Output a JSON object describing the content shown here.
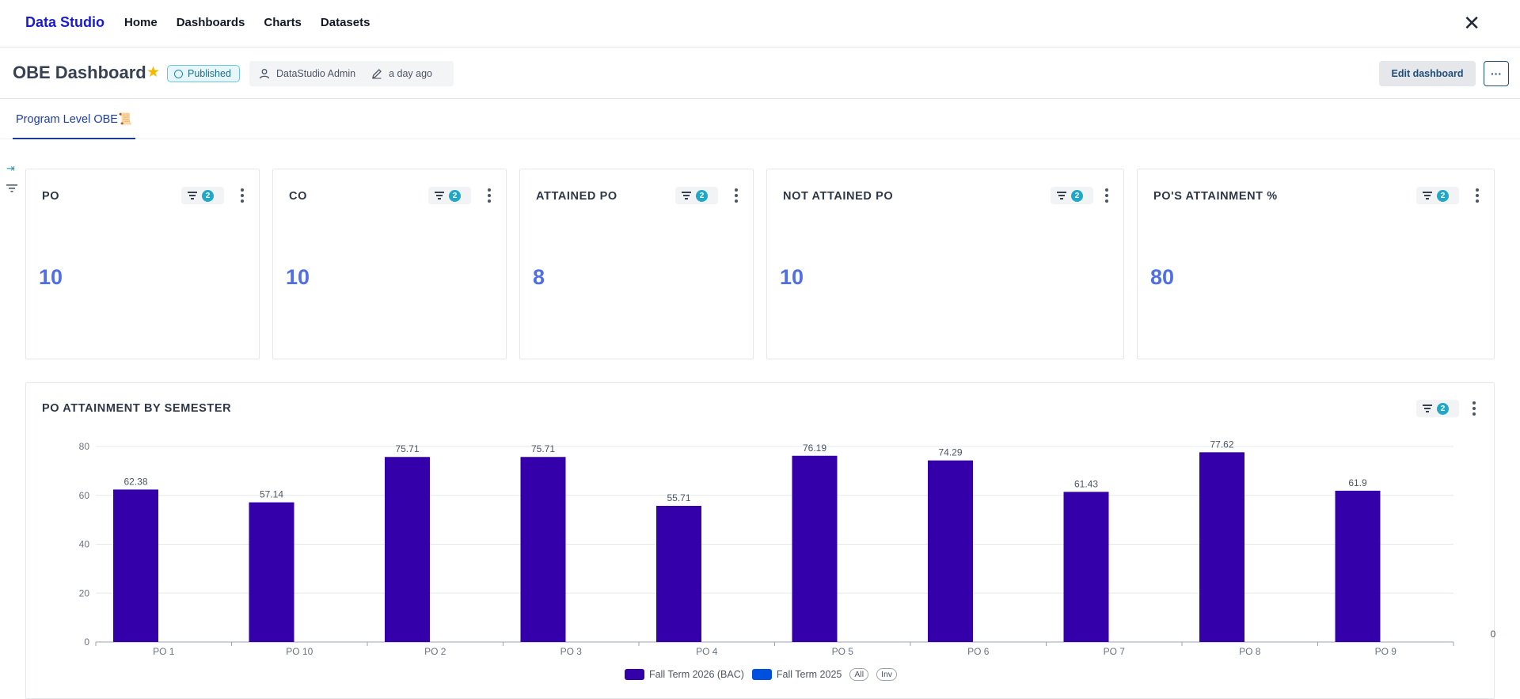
{
  "app": {
    "brand": "Data Studio",
    "close_icon": "close-icon"
  },
  "nav": {
    "items": [
      {
        "label": "Home"
      },
      {
        "label": "Dashboards"
      },
      {
        "label": "Charts"
      },
      {
        "label": "Datasets"
      }
    ]
  },
  "header": {
    "title": "OBE Dashboard",
    "status": "Published",
    "owner": "DataStudio Admin",
    "modified": "a day ago",
    "edit_label": "Edit dashboard",
    "more_label": "···"
  },
  "tabs": [
    {
      "label": "Program Level OBE📜"
    }
  ],
  "kpis": [
    {
      "title": "PO",
      "value": "10",
      "filters": "2"
    },
    {
      "title": "CO",
      "value": "10",
      "filters": "2"
    },
    {
      "title": "ATTAINED PO",
      "value": "8",
      "filters": "2"
    },
    {
      "title": "NOT ATTAINED PO",
      "value": "10",
      "filters": "2"
    },
    {
      "title": "PO'S ATTAINMENT %",
      "value": "80",
      "filters": "2"
    }
  ],
  "chart_panel": {
    "title": "PO ATTAINMENT BY SEMESTER",
    "filters": "2"
  },
  "legend": {
    "all_label": "All",
    "inv_label": "Inv"
  },
  "colors": {
    "accent": "#1a1ad6",
    "kpi_value": "#4f6ee8",
    "series1": "#3300aa",
    "series2": "#0050e0"
  },
  "chart_data": {
    "type": "bar",
    "categories": [
      "PO 1",
      "PO 10",
      "PO 2",
      "PO 3",
      "PO 4",
      "PO 5",
      "PO 6",
      "PO 7",
      "PO 8",
      "PO 9"
    ],
    "series": [
      {
        "name": "Fall Term 2026 (BAC)",
        "values": [
          62.38,
          57.14,
          75.71,
          75.71,
          55.71,
          76.19,
          74.29,
          61.43,
          77.62,
          61.9
        ]
      },
      {
        "name": "Fall Term 2025",
        "values": [
          0,
          0,
          0,
          0,
          0,
          0,
          0,
          0,
          0,
          0
        ]
      }
    ],
    "ylim": [
      0,
      80
    ],
    "yticks": [
      0,
      20,
      40,
      60,
      80
    ],
    "grid": true,
    "legend_position": "bottom"
  }
}
